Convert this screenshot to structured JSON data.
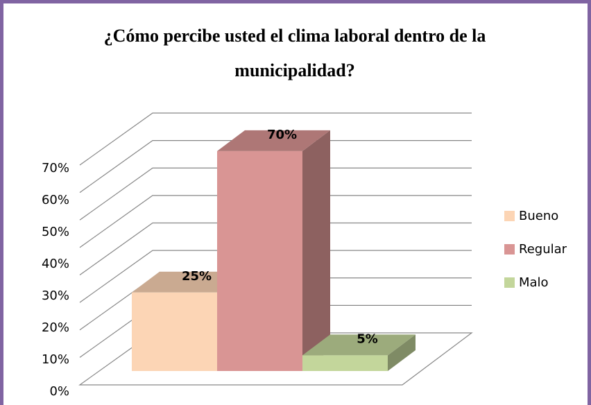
{
  "chart_data": {
    "type": "bar3d",
    "title": "¿Cómo percibe usted el clima laboral dentro de la municipalidad?",
    "categories": [
      null
    ],
    "series": [
      {
        "name": "Bueno",
        "color": "#fcd5b5",
        "values": [
          25
        ],
        "value_labels": [
          "25%"
        ]
      },
      {
        "name": "Regular",
        "color": "#d99594",
        "values": [
          70
        ],
        "value_labels": [
          "70%"
        ]
      },
      {
        "name": "Malo",
        "color": "#c3d69b",
        "values": [
          5
        ],
        "value_labels": [
          "5%"
        ]
      }
    ],
    "ylim": [
      0,
      80
    ],
    "yticks": [
      {
        "value": 0,
        "label": "0%"
      },
      {
        "value": 10,
        "label": "10%"
      },
      {
        "value": 20,
        "label": "20%"
      },
      {
        "value": 30,
        "label": "30%"
      },
      {
        "value": 40,
        "label": "40%"
      },
      {
        "value": 50,
        "label": "50%"
      },
      {
        "value": 60,
        "label": "60%"
      },
      {
        "value": 70,
        "label": "70%"
      }
    ],
    "grid": true,
    "legend": "right"
  }
}
